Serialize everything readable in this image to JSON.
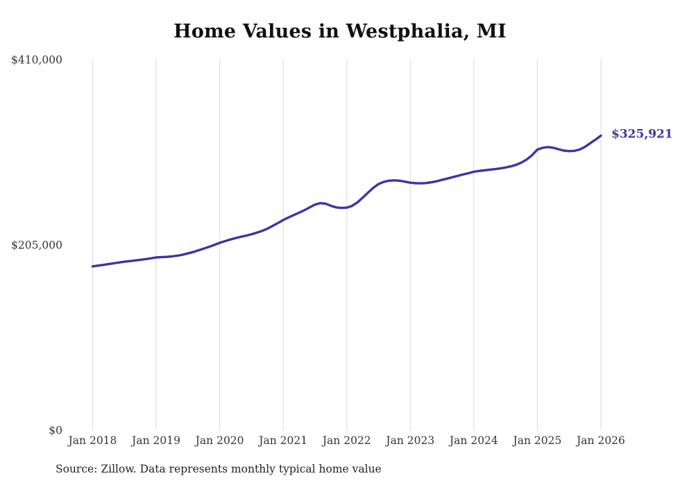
{
  "chart": {
    "title": "Home Values in Westphalia, MI",
    "source": "Source: Zillow. Data represents monthly typical home value",
    "end_label": "$325,921"
  },
  "chart_data": {
    "type": "line",
    "title": "Home Values in Westphalia, MI",
    "xlabel": "",
    "ylabel": "",
    "ylim": [
      0,
      410000
    ],
    "grid": "vertical-only",
    "legend": "none",
    "line_color": "#3b35a2",
    "gridline_color": "#d8d8d8",
    "tick_color": "#333333",
    "x_tick_labels": [
      "Jan 2018",
      "Jan 2019",
      "Jan 2020",
      "Jan 2021",
      "Jan 2022",
      "Jan 2023",
      "Jan 2024",
      "Jan 2025",
      "Jan 2026"
    ],
    "y_ticks": [
      {
        "label": "$410,000",
        "value": 410000
      },
      {
        "label": "$205,000",
        "value": 205000
      },
      {
        "label": "$0",
        "value": 0
      }
    ],
    "annotation": {
      "text": "$325,921",
      "value": 325921
    },
    "series": [
      {
        "name": "Monthly typical home value",
        "x_start": "2018-01",
        "x_step": "1 month",
        "values": [
          181300,
          182100,
          182900,
          183800,
          184700,
          185600,
          186400,
          187100,
          187800,
          188500,
          189300,
          190200,
          191200,
          191500,
          191800,
          192300,
          193100,
          194200,
          195600,
          197200,
          199000,
          200900,
          202900,
          205100,
          207300,
          209200,
          211000,
          212600,
          214000,
          215300,
          216800,
          218500,
          220500,
          223000,
          226000,
          229300,
          232600,
          235400,
          238100,
          240700,
          243400,
          246500,
          249600,
          251300,
          250600,
          248300,
          246500,
          245900,
          246300,
          248200,
          252000,
          257200,
          262800,
          268200,
          272300,
          274800,
          276100,
          276500,
          276000,
          275000,
          273900,
          273300,
          273200,
          273500,
          274300,
          275500,
          277000,
          278500,
          280000,
          281500,
          283000,
          284400,
          286000,
          286900,
          287500,
          288200,
          288900,
          289700,
          290700,
          292000,
          293700,
          296100,
          299600,
          304300,
          310500,
          312500,
          313300,
          312600,
          310900,
          309400,
          308800,
          309100,
          310600,
          313600,
          317600,
          321600,
          325921
        ]
      }
    ]
  }
}
